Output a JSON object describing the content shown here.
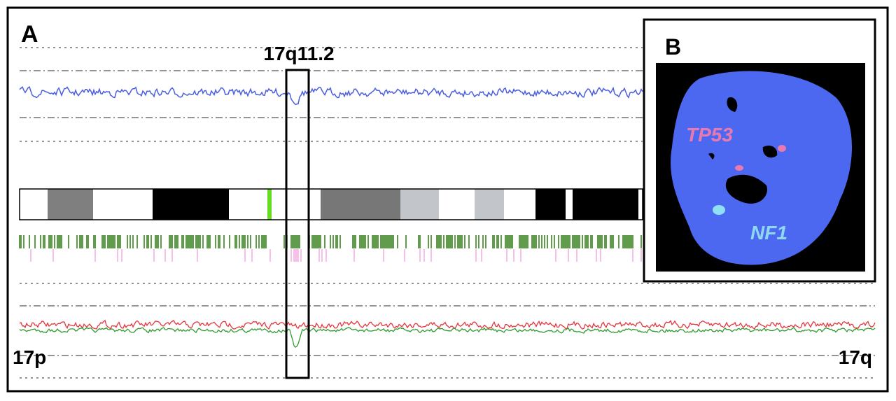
{
  "panel_a": {
    "label": "A",
    "region": "17q11.2",
    "left_arm": "17p",
    "right_arm": "17q"
  },
  "panel_b": {
    "label": "B",
    "probe_1": "TP53",
    "probe_2": "NF1"
  }
}
